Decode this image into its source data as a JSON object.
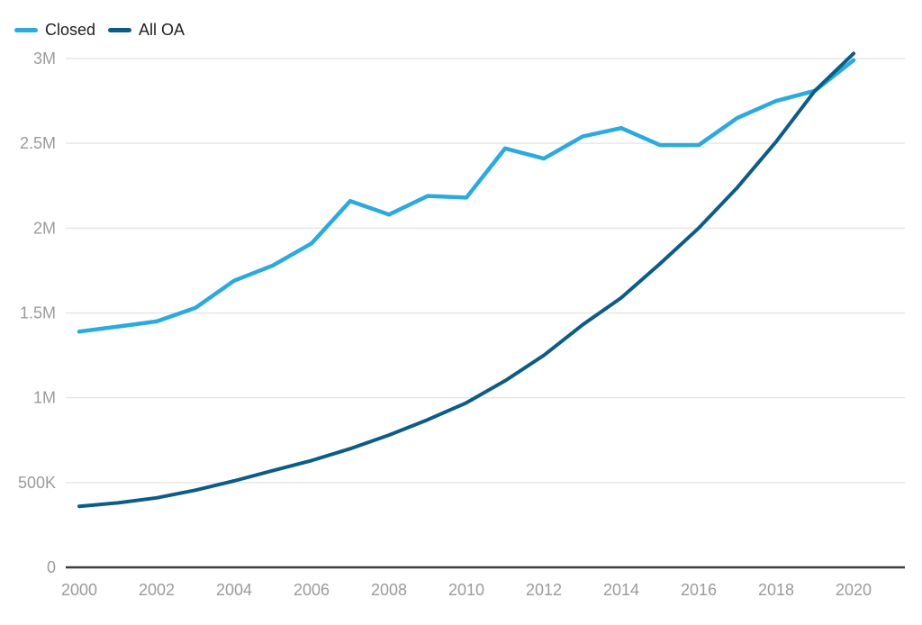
{
  "legend": {
    "position": "top-left"
  },
  "colors": {
    "background": "#ffffff",
    "gridline": "#e7e7e7",
    "axis_line": "#3d3d3d",
    "tick_label": "#9b9b9b",
    "legend_text": "#202020",
    "closed_line": "#2ca9dd",
    "all_oa_line": "#0d5c86"
  },
  "chart_data": {
    "type": "line",
    "title": "",
    "xlabel": "",
    "ylabel": "",
    "grid": "horizontal",
    "legend_position": "top-left",
    "xlim": [
      2000,
      2020
    ],
    "ylim": [
      0,
      3000000
    ],
    "x": [
      2000,
      2001,
      2002,
      2003,
      2004,
      2005,
      2006,
      2007,
      2008,
      2009,
      2010,
      2011,
      2012,
      2013,
      2014,
      2015,
      2016,
      2017,
      2018,
      2019,
      2020
    ],
    "x_ticks": [
      2000,
      2002,
      2004,
      2006,
      2008,
      2010,
      2012,
      2014,
      2016,
      2018,
      2020
    ],
    "y_ticks": [
      {
        "value": 0,
        "label": "0"
      },
      {
        "value": 500000,
        "label": "500K"
      },
      {
        "value": 1000000,
        "label": "1M"
      },
      {
        "value": 1500000,
        "label": "1.5M"
      },
      {
        "value": 2000000,
        "label": "2M"
      },
      {
        "value": 2500000,
        "label": "2.5M"
      },
      {
        "value": 3000000,
        "label": "3M"
      }
    ],
    "series": [
      {
        "name": "Closed",
        "color": "#2ca9dd",
        "values": [
          1390000,
          1420000,
          1450000,
          1530000,
          1690000,
          1780000,
          1910000,
          2160000,
          2080000,
          2190000,
          2180000,
          2470000,
          2410000,
          2540000,
          2590000,
          2490000,
          2490000,
          2650000,
          2750000,
          2810000,
          2990000
        ]
      },
      {
        "name": "All OA",
        "color": "#0d5c86",
        "values": [
          360000,
          380000,
          410000,
          455000,
          510000,
          570000,
          630000,
          700000,
          780000,
          870000,
          970000,
          1100000,
          1250000,
          1430000,
          1590000,
          1790000,
          2000000,
          2240000,
          2510000,
          2810000,
          3030000
        ]
      }
    ]
  }
}
